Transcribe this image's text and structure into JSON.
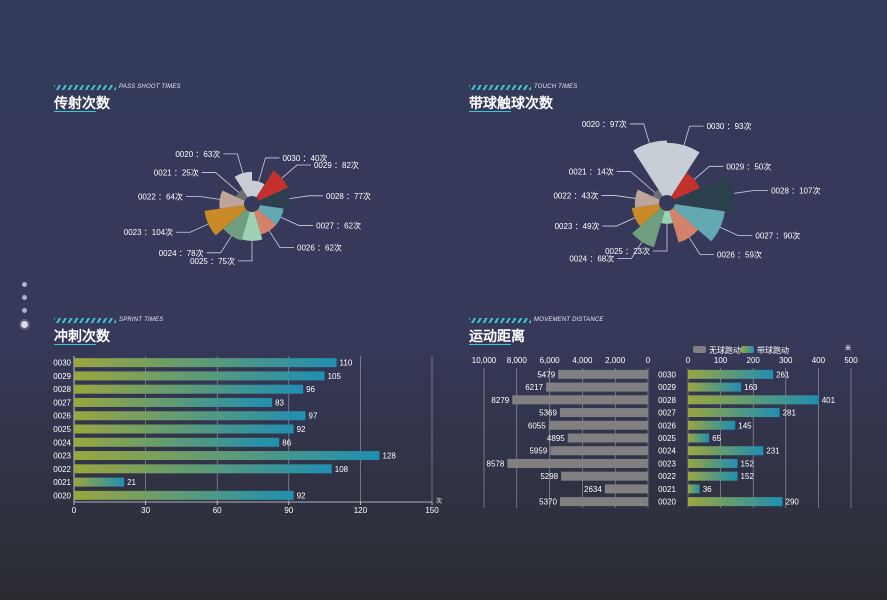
{
  "nav": {
    "dots": 4,
    "active_index": 3
  },
  "colors": {
    "accent": "#3fc6d3",
    "rose": [
      "#c7ced6",
      "#c3312e",
      "#2b3f4e",
      "#62a9b2",
      "#d4826a",
      "#9bd2b3",
      "#6e9d7f",
      "#ca8a27",
      "#bfa49b",
      "#6e6e70",
      "#c7ced6"
    ],
    "bar_from": "#9aa63e",
    "bar_to": "#1f8fb2",
    "gray_bar": "#808081"
  },
  "panels": {
    "shoot": {
      "subtitle": "PASS SHOOT TIMES",
      "title": "传射次数"
    },
    "touch": {
      "subtitle": "TOUCH TIMES",
      "title": "带球触球次数"
    },
    "sprint": {
      "subtitle": "SPRINT TIMES",
      "title": "冲刺次数"
    },
    "move": {
      "subtitle": "MOVEMENT DISTANCE",
      "title": "运动距离"
    }
  },
  "chart_data": [
    {
      "id": "shoot",
      "type": "pie",
      "variant": "nightingale-rose",
      "title": "传射次数",
      "unit": "次",
      "label_sep": " ：",
      "categories": [
        "0030",
        "0029",
        "0028",
        "0027",
        "0026",
        "0025",
        "0024",
        "0023",
        "0022",
        "0021",
        "0020"
      ],
      "values": [
        40,
        82,
        77,
        62,
        62,
        75,
        78,
        104,
        64,
        25,
        63
      ]
    },
    {
      "id": "touch",
      "type": "pie",
      "variant": "nightingale-rose",
      "title": "带球触球次数",
      "unit": "次",
      "label_sep": " ：",
      "categories": [
        "0030",
        "0029",
        "0028",
        "0027",
        "0026",
        "0025",
        "0024",
        "0023",
        "0022",
        "0021",
        "0020"
      ],
      "values": [
        93,
        50,
        107,
        90,
        59,
        23,
        68,
        49,
        43,
        14,
        97
      ]
    },
    {
      "id": "sprint",
      "type": "bar",
      "orientation": "horizontal",
      "title": "冲刺次数",
      "categories": [
        "0030",
        "0029",
        "0028",
        "0027",
        "0026",
        "0025",
        "0024",
        "0023",
        "0022",
        "0021",
        "0020"
      ],
      "values": [
        110,
        105,
        96,
        83,
        97,
        92,
        86,
        128,
        108,
        21,
        92
      ],
      "xlim": [
        0,
        150
      ],
      "xticks": [
        "0",
        "30",
        "60",
        "90",
        "120",
        "150"
      ],
      "xunit": "次"
    },
    {
      "id": "move",
      "type": "bar",
      "orientation": "horizontal",
      "title": "运动距离",
      "categories": [
        "0030",
        "0029",
        "0028",
        "0027",
        "0026",
        "0025",
        "0024",
        "0023",
        "0022",
        "0021",
        "0020"
      ],
      "legend": [
        "无球跑动",
        "带球跑动"
      ],
      "unit": "米",
      "series": [
        {
          "name": "无球跑动",
          "values": [
            5479,
            6217,
            8279,
            5369,
            6055,
            4895,
            5959,
            8578,
            5298,
            2634,
            5370
          ],
          "xlim": [
            0,
            10000
          ],
          "xticks": [
            "10,000",
            "8,000",
            "6,000",
            "4,000",
            "2,000",
            "0"
          ]
        },
        {
          "name": "带球跑动",
          "values": [
            261,
            163,
            401,
            281,
            145,
            65,
            231,
            152,
            152,
            36,
            290
          ],
          "xlim": [
            0,
            500
          ],
          "xticks": [
            "0",
            "100",
            "200",
            "300",
            "400",
            "500"
          ]
        }
      ]
    }
  ]
}
